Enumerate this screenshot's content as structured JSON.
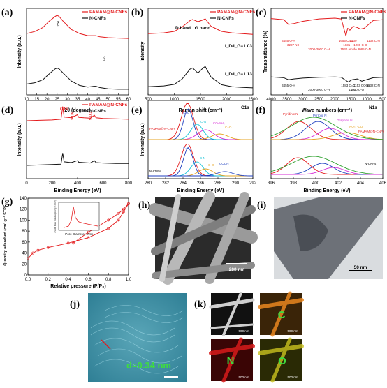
{
  "panels": {
    "a": {
      "label": "(a)",
      "xlabel": "2θ (degree)",
      "ylabel": "Intensity (a.u.)",
      "xticks": [
        "10",
        "15",
        "20",
        "25",
        "30",
        "35",
        "40",
        "45",
        "50",
        "55",
        "60"
      ],
      "peaks": [
        "002",
        "101"
      ]
    },
    "b": {
      "label": "(b)",
      "xlabel": "Raman shift (cm⁻¹)",
      "ylabel": "Intensity",
      "xticks": [
        "500",
        "1000",
        "1500",
        "2000",
        "2500"
      ],
      "d_band": "D band",
      "g_band": "G band",
      "ratio_top": "I_D/I_G=1.03",
      "ratio_bottom": "I_D/I_G=1.13"
    },
    "c": {
      "label": "(c)",
      "xlabel": "Wave numbers (cm⁻¹)",
      "ylabel": "Transmittance (%)",
      "xticks": [
        "4000",
        "3500",
        "3000",
        "2500",
        "2000",
        "1500",
        "1000",
        "500"
      ],
      "ann_top": [
        "3455 O-H",
        "3287 N-H",
        "2000-3000 C-H",
        "1655 C=O",
        "1631",
        "1530 amide II",
        "1430",
        "1200 C-O",
        "1085 C-N",
        "1132 C-N"
      ],
      "ann_bottom": [
        "3455 O-H",
        "2000-3000 C-H",
        "1583 C=C",
        "1460",
        "1153 COOH",
        "1300 C-O",
        "1132 C-N"
      ]
    },
    "d": {
      "label": "(d)",
      "xlabel": "Binding Energy  (eV)",
      "ylabel": "Intensity (a.u.)",
      "xticks": [
        "0",
        "200",
        "400",
        "600",
        "800"
      ],
      "peaks": [
        "C1s",
        "N1s",
        "O1s"
      ]
    },
    "e": {
      "label": "(e)",
      "title": "C1s",
      "xlabel": "Binding Energy (eV)",
      "ylabel": "Intensity (a.u.)",
      "xticks": [
        "280",
        "282",
        "284",
        "286",
        "288",
        "290",
        "292"
      ],
      "sample_top": "PAMAM@N-CNFs",
      "sample_bottom": "N-CNFs",
      "ann_top": [
        "C=C",
        "C-N",
        "CO-NH₂",
        "C=O"
      ],
      "ann_bottom": [
        "C=C",
        "C-N",
        "C-O",
        "COOH"
      ]
    },
    "f": {
      "label": "(f)",
      "title": "N1s",
      "xlabel": "Binding Energy (eV)",
      "ylabel": "",
      "xticks": [
        "396",
        "398",
        "400",
        "402",
        "404",
        "406"
      ],
      "sample_top": "PAMAM@N-CNFs",
      "sample_bottom": "N-CNFs",
      "ann": [
        "Pyridinic N",
        "Pyrrolic N",
        "Graphitic N",
        "NO₂, -CO"
      ]
    },
    "g": {
      "label": "(g)",
      "xlabel": "Relative pressure (P/P₀)",
      "ylabel": "Quantity adsorbed (cm³ g⁻¹ STP)",
      "xticks": [
        "0.0",
        "0.2",
        "0.4",
        "0.6",
        "0.8",
        "1.0"
      ],
      "yticks": [
        "0",
        "20",
        "40",
        "60",
        "80",
        "100",
        "120",
        "140"
      ],
      "inset_xlabel": "Pore Diameter (nm)",
      "inset_ylabel": "dV/dD Pore Volume (cm³ g⁻¹ nm⁻¹)"
    },
    "h": {
      "label": "(h)",
      "scale": "200 nm"
    },
    "i": {
      "label": "(i)",
      "scale": "50 nm"
    },
    "j": {
      "label": "(j)",
      "d_spacing": "d=0.34 nm"
    },
    "k": {
      "label": "(k)",
      "scales": [
        "500 nm",
        "500 nm",
        "500 nm",
        "500 nm"
      ],
      "elements": [
        "C",
        "N",
        "O"
      ]
    }
  },
  "legend": {
    "series_red": "PAMAM@N-CNFs",
    "series_black": "N-CNFs"
  },
  "colors": {
    "red": "#e41a1c",
    "black": "#111111",
    "blue": "#1f3fbf",
    "green": "#2ca02c",
    "magenta": "#d62bd6",
    "orange": "#e6a321",
    "cyan": "#17c3d6"
  },
  "chart_data": [
    {
      "panel": "a",
      "type": "line",
      "xlim": [
        10,
        60
      ],
      "series": [
        {
          "name": "PAMAM@N-CNFs",
          "x": [
            10,
            14,
            18,
            21,
            24,
            25,
            26,
            28,
            32,
            36,
            40,
            43,
            44,
            46,
            50,
            55,
            60
          ],
          "values": [
            0.55,
            0.6,
            0.7,
            0.85,
            0.97,
            1.0,
            0.97,
            0.85,
            0.65,
            0.55,
            0.5,
            0.5,
            0.5,
            0.47,
            0.45,
            0.44,
            0.43
          ]
        },
        {
          "name": "N-CNFs",
          "x": [
            10,
            14,
            18,
            21,
            24,
            25,
            26,
            28,
            32,
            36,
            40,
            43,
            44,
            46,
            50,
            55,
            60
          ],
          "values": [
            0.15,
            0.18,
            0.25,
            0.38,
            0.5,
            0.52,
            0.5,
            0.4,
            0.22,
            0.12,
            0.08,
            0.1,
            0.1,
            0.07,
            0.04,
            0.03,
            0.03
          ]
        }
      ]
    },
    {
      "panel": "b",
      "type": "line",
      "xlim": [
        500,
        2500
      ],
      "series": [
        {
          "name": "PAMAM@N-CNFs",
          "x": [
            500,
            800,
            1000,
            1150,
            1300,
            1350,
            1450,
            1550,
            1590,
            1700,
            1900,
            2100,
            2300,
            2500
          ],
          "values": [
            0.6,
            0.62,
            0.66,
            0.78,
            0.95,
            0.98,
            0.92,
            0.97,
            1.0,
            0.8,
            0.66,
            0.62,
            0.6,
            0.58
          ]
        },
        {
          "name": "N-CNFs",
          "x": [
            500,
            800,
            1000,
            1150,
            1300,
            1350,
            1450,
            1550,
            1590,
            1700,
            1900,
            2100,
            2300,
            2500
          ],
          "values": [
            0.1,
            0.12,
            0.16,
            0.3,
            0.55,
            0.58,
            0.45,
            0.58,
            0.62,
            0.35,
            0.15,
            0.1,
            0.08,
            0.07
          ]
        }
      ]
    },
    {
      "panel": "c",
      "type": "line",
      "xlim": [
        4000,
        500
      ],
      "series": [
        {
          "name": "PAMAM@N-CNFs",
          "x": [
            4000,
            3600,
            3455,
            3287,
            3000,
            2500,
            2000,
            1800,
            1655,
            1600,
            1530,
            1430,
            1300,
            1200,
            1085,
            800,
            500
          ],
          "values": [
            0.85,
            0.82,
            0.7,
            0.72,
            0.78,
            0.84,
            0.86,
            0.84,
            0.4,
            0.6,
            0.55,
            0.65,
            0.62,
            0.58,
            0.6,
            0.8,
            0.82
          ]
        },
        {
          "name": "N-CNFs",
          "x": [
            4000,
            3600,
            3455,
            3287,
            3000,
            2500,
            2000,
            1800,
            1583,
            1460,
            1300,
            1153,
            1132,
            800,
            500
          ],
          "values": [
            0.35,
            0.33,
            0.28,
            0.3,
            0.32,
            0.34,
            0.35,
            0.34,
            0.22,
            0.28,
            0.3,
            0.24,
            0.25,
            0.33,
            0.34
          ]
        }
      ]
    },
    {
      "panel": "d",
      "type": "line",
      "xlim": [
        0,
        800
      ],
      "series": [
        {
          "name": "PAMAM@N-CNFs",
          "x": [
            0,
            100,
            200,
            270,
            284,
            295,
            350,
            399,
            410,
            450,
            500,
            532,
            545,
            600,
            700,
            800
          ],
          "values": [
            0.62,
            0.63,
            0.64,
            0.66,
            1.0,
            0.72,
            0.7,
            0.78,
            0.71,
            0.7,
            0.69,
            0.77,
            0.7,
            0.68,
            0.67,
            0.66
          ]
        },
        {
          "name": "N-CNFs",
          "x": [
            0,
            100,
            200,
            270,
            284,
            295,
            350,
            399,
            410,
            450,
            500,
            532,
            545,
            600,
            700,
            800
          ],
          "values": [
            0.24,
            0.25,
            0.26,
            0.27,
            0.55,
            0.33,
            0.31,
            0.36,
            0.32,
            0.31,
            0.3,
            0.36,
            0.31,
            0.3,
            0.29,
            0.29
          ]
        }
      ]
    },
    {
      "panel": "g",
      "type": "line",
      "xlim": [
        0,
        1
      ],
      "ylim": [
        0,
        140
      ],
      "series": [
        {
          "name": "adsorption",
          "x": [
            0,
            0.05,
            0.1,
            0.2,
            0.4,
            0.6,
            0.8,
            0.9,
            0.95,
            1.0
          ],
          "values": [
            30,
            40,
            45,
            50,
            58,
            68,
            85,
            100,
            115,
            130
          ]
        },
        {
          "name": "desorption",
          "x": [
            0.45,
            0.6,
            0.8,
            0.9,
            0.95,
            1.0
          ],
          "values": [
            58,
            78,
            100,
            112,
            120,
            130
          ]
        }
      ]
    }
  ]
}
